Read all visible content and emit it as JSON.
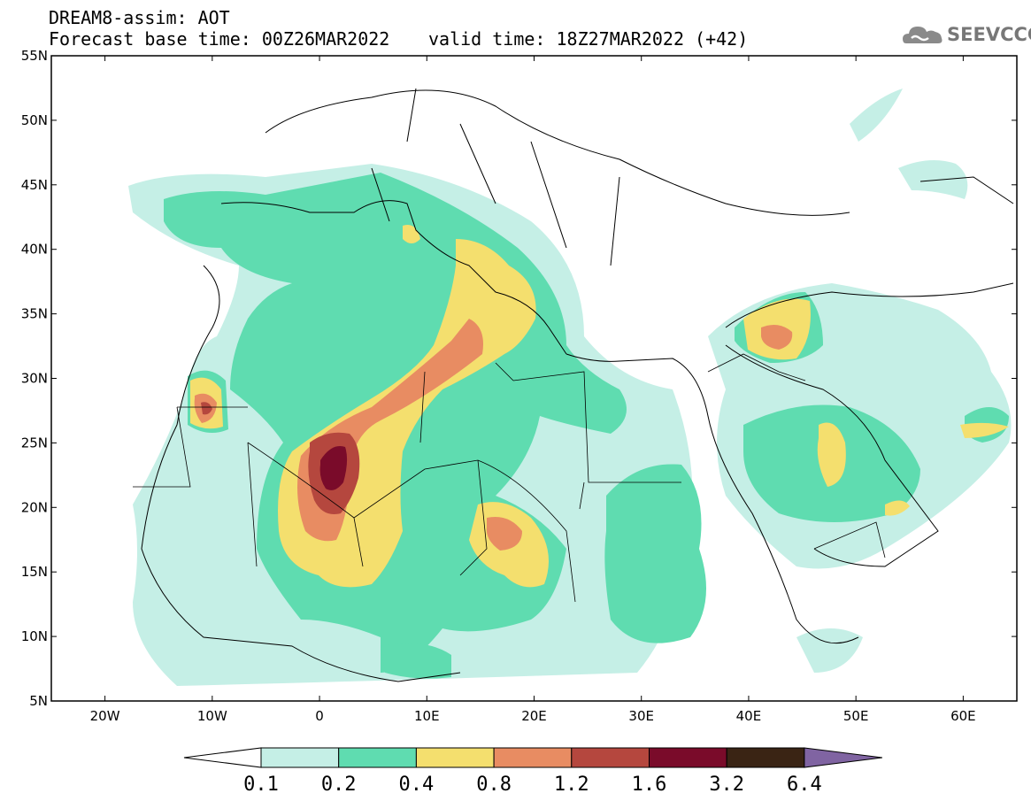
{
  "header": {
    "title": "DREAM8-assim: AOT",
    "base_time": "Forecast base time: 00Z26MAR2022",
    "valid_time": "valid time: 18Z27MAR2022 (+42)",
    "logo_text": "SEEVCCC",
    "logo_icon": "cloud-icon"
  },
  "map": {
    "lon_range": [
      -25,
      65
    ],
    "lat_range": [
      5,
      55
    ],
    "lat_labels": [
      "55N",
      "50N",
      "45N",
      "40N",
      "35N",
      "30N",
      "25N",
      "20N",
      "15N",
      "10N",
      "5N"
    ],
    "lon_labels": [
      "20W",
      "10W",
      "0",
      "10E",
      "20E",
      "30E",
      "40E",
      "50E",
      "60E"
    ],
    "background": "#ffffff",
    "border_color": "#000000"
  },
  "colorbar": {
    "labels": [
      "0.1",
      "0.2",
      "0.4",
      "0.8",
      "1.2",
      "1.6",
      "3.2",
      "6.4"
    ],
    "colors": [
      "#ffffff",
      "#c5efe6",
      "#5fdcb0",
      "#f4df6e",
      "#e88c62",
      "#b5473e",
      "#7a0b2a",
      "#3a2414",
      "#8064a2"
    ]
  }
}
